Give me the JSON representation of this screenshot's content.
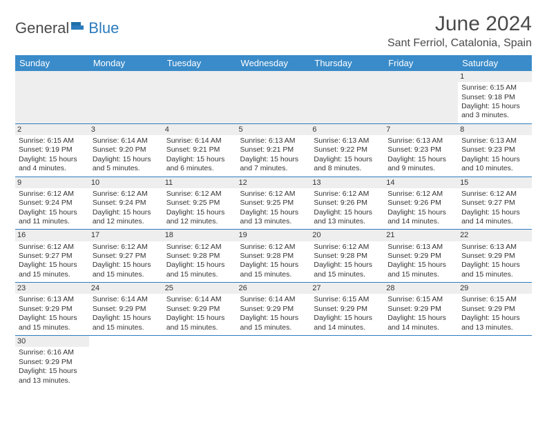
{
  "brand": {
    "part1": "General",
    "part2": "Blue"
  },
  "title": "June 2024",
  "location": "Sant Ferriol, Catalonia, Spain",
  "colors": {
    "header_bg": "#3a8bc9",
    "header_text": "#ffffff",
    "rule": "#2b7bbd",
    "daynum_bg": "#eeeeee",
    "brand_blue": "#2b7bbd",
    "body_text": "#333333"
  },
  "day_headers": [
    "Sunday",
    "Monday",
    "Tuesday",
    "Wednesday",
    "Thursday",
    "Friday",
    "Saturday"
  ],
  "weeks": [
    [
      null,
      null,
      null,
      null,
      null,
      null,
      {
        "n": "1",
        "sr": "Sunrise: 6:15 AM",
        "ss": "Sunset: 9:18 PM",
        "dl1": "Daylight: 15 hours",
        "dl2": "and 3 minutes."
      }
    ],
    [
      {
        "n": "2",
        "sr": "Sunrise: 6:15 AM",
        "ss": "Sunset: 9:19 PM",
        "dl1": "Daylight: 15 hours",
        "dl2": "and 4 minutes."
      },
      {
        "n": "3",
        "sr": "Sunrise: 6:14 AM",
        "ss": "Sunset: 9:20 PM",
        "dl1": "Daylight: 15 hours",
        "dl2": "and 5 minutes."
      },
      {
        "n": "4",
        "sr": "Sunrise: 6:14 AM",
        "ss": "Sunset: 9:21 PM",
        "dl1": "Daylight: 15 hours",
        "dl2": "and 6 minutes."
      },
      {
        "n": "5",
        "sr": "Sunrise: 6:13 AM",
        "ss": "Sunset: 9:21 PM",
        "dl1": "Daylight: 15 hours",
        "dl2": "and 7 minutes."
      },
      {
        "n": "6",
        "sr": "Sunrise: 6:13 AM",
        "ss": "Sunset: 9:22 PM",
        "dl1": "Daylight: 15 hours",
        "dl2": "and 8 minutes."
      },
      {
        "n": "7",
        "sr": "Sunrise: 6:13 AM",
        "ss": "Sunset: 9:23 PM",
        "dl1": "Daylight: 15 hours",
        "dl2": "and 9 minutes."
      },
      {
        "n": "8",
        "sr": "Sunrise: 6:13 AM",
        "ss": "Sunset: 9:23 PM",
        "dl1": "Daylight: 15 hours",
        "dl2": "and 10 minutes."
      }
    ],
    [
      {
        "n": "9",
        "sr": "Sunrise: 6:12 AM",
        "ss": "Sunset: 9:24 PM",
        "dl1": "Daylight: 15 hours",
        "dl2": "and 11 minutes."
      },
      {
        "n": "10",
        "sr": "Sunrise: 6:12 AM",
        "ss": "Sunset: 9:24 PM",
        "dl1": "Daylight: 15 hours",
        "dl2": "and 12 minutes."
      },
      {
        "n": "11",
        "sr": "Sunrise: 6:12 AM",
        "ss": "Sunset: 9:25 PM",
        "dl1": "Daylight: 15 hours",
        "dl2": "and 12 minutes."
      },
      {
        "n": "12",
        "sr": "Sunrise: 6:12 AM",
        "ss": "Sunset: 9:25 PM",
        "dl1": "Daylight: 15 hours",
        "dl2": "and 13 minutes."
      },
      {
        "n": "13",
        "sr": "Sunrise: 6:12 AM",
        "ss": "Sunset: 9:26 PM",
        "dl1": "Daylight: 15 hours",
        "dl2": "and 13 minutes."
      },
      {
        "n": "14",
        "sr": "Sunrise: 6:12 AM",
        "ss": "Sunset: 9:26 PM",
        "dl1": "Daylight: 15 hours",
        "dl2": "and 14 minutes."
      },
      {
        "n": "15",
        "sr": "Sunrise: 6:12 AM",
        "ss": "Sunset: 9:27 PM",
        "dl1": "Daylight: 15 hours",
        "dl2": "and 14 minutes."
      }
    ],
    [
      {
        "n": "16",
        "sr": "Sunrise: 6:12 AM",
        "ss": "Sunset: 9:27 PM",
        "dl1": "Daylight: 15 hours",
        "dl2": "and 15 minutes."
      },
      {
        "n": "17",
        "sr": "Sunrise: 6:12 AM",
        "ss": "Sunset: 9:27 PM",
        "dl1": "Daylight: 15 hours",
        "dl2": "and 15 minutes."
      },
      {
        "n": "18",
        "sr": "Sunrise: 6:12 AM",
        "ss": "Sunset: 9:28 PM",
        "dl1": "Daylight: 15 hours",
        "dl2": "and 15 minutes."
      },
      {
        "n": "19",
        "sr": "Sunrise: 6:12 AM",
        "ss": "Sunset: 9:28 PM",
        "dl1": "Daylight: 15 hours",
        "dl2": "and 15 minutes."
      },
      {
        "n": "20",
        "sr": "Sunrise: 6:12 AM",
        "ss": "Sunset: 9:28 PM",
        "dl1": "Daylight: 15 hours",
        "dl2": "and 15 minutes."
      },
      {
        "n": "21",
        "sr": "Sunrise: 6:13 AM",
        "ss": "Sunset: 9:29 PM",
        "dl1": "Daylight: 15 hours",
        "dl2": "and 15 minutes."
      },
      {
        "n": "22",
        "sr": "Sunrise: 6:13 AM",
        "ss": "Sunset: 9:29 PM",
        "dl1": "Daylight: 15 hours",
        "dl2": "and 15 minutes."
      }
    ],
    [
      {
        "n": "23",
        "sr": "Sunrise: 6:13 AM",
        "ss": "Sunset: 9:29 PM",
        "dl1": "Daylight: 15 hours",
        "dl2": "and 15 minutes."
      },
      {
        "n": "24",
        "sr": "Sunrise: 6:14 AM",
        "ss": "Sunset: 9:29 PM",
        "dl1": "Daylight: 15 hours",
        "dl2": "and 15 minutes."
      },
      {
        "n": "25",
        "sr": "Sunrise: 6:14 AM",
        "ss": "Sunset: 9:29 PM",
        "dl1": "Daylight: 15 hours",
        "dl2": "and 15 minutes."
      },
      {
        "n": "26",
        "sr": "Sunrise: 6:14 AM",
        "ss": "Sunset: 9:29 PM",
        "dl1": "Daylight: 15 hours",
        "dl2": "and 15 minutes."
      },
      {
        "n": "27",
        "sr": "Sunrise: 6:15 AM",
        "ss": "Sunset: 9:29 PM",
        "dl1": "Daylight: 15 hours",
        "dl2": "and 14 minutes."
      },
      {
        "n": "28",
        "sr": "Sunrise: 6:15 AM",
        "ss": "Sunset: 9:29 PM",
        "dl1": "Daylight: 15 hours",
        "dl2": "and 14 minutes."
      },
      {
        "n": "29",
        "sr": "Sunrise: 6:15 AM",
        "ss": "Sunset: 9:29 PM",
        "dl1": "Daylight: 15 hours",
        "dl2": "and 13 minutes."
      }
    ],
    [
      {
        "n": "30",
        "sr": "Sunrise: 6:16 AM",
        "ss": "Sunset: 9:29 PM",
        "dl1": "Daylight: 15 hours",
        "dl2": "and 13 minutes."
      },
      null,
      null,
      null,
      null,
      null,
      null
    ]
  ]
}
